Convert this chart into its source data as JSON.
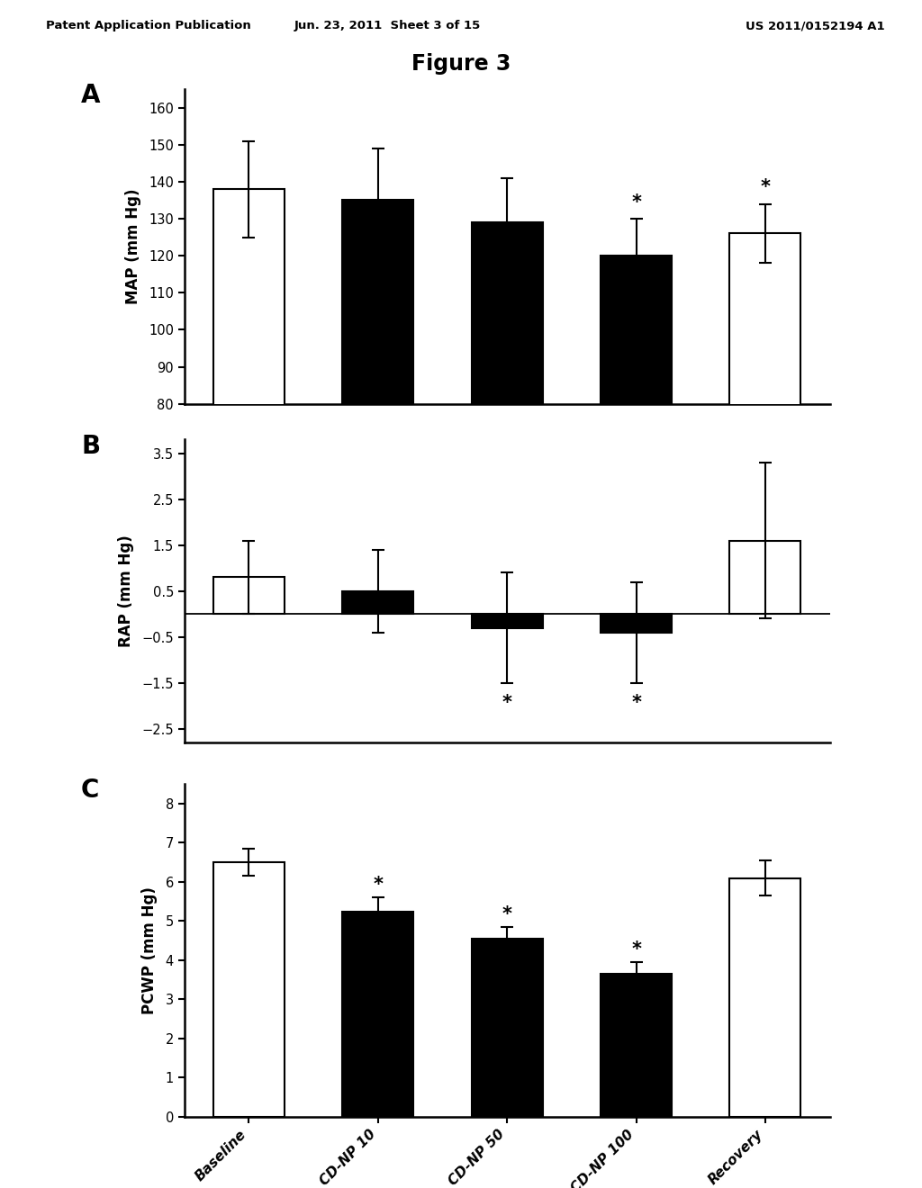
{
  "categories": [
    "Baseline",
    "CD-NP 10",
    "CD-NP 50",
    "CD-NP 100",
    "Recovery"
  ],
  "bar_colors": [
    "white",
    "black",
    "black",
    "black",
    "white"
  ],
  "bar_edgecolor": "black",
  "A": {
    "values": [
      138,
      135,
      129,
      120,
      126
    ],
    "errors": [
      13,
      14,
      12,
      10,
      8
    ],
    "ylabel": "MAP (mm Hg)",
    "ylim": [
      80,
      165
    ],
    "yticks": [
      80,
      90,
      100,
      110,
      120,
      130,
      140,
      150,
      160
    ],
    "significant": [
      false,
      false,
      false,
      true,
      true
    ]
  },
  "B": {
    "values": [
      0.8,
      0.5,
      -0.3,
      -0.4,
      1.6
    ],
    "errors": [
      0.8,
      0.9,
      1.2,
      1.1,
      1.7
    ],
    "ylabel": "RAP (mm Hg)",
    "ylim": [
      -2.8,
      3.8
    ],
    "yticks": [
      -2.5,
      -1.5,
      -0.5,
      0.5,
      1.5,
      2.5,
      3.5
    ],
    "significant": [
      false,
      false,
      true,
      true,
      false
    ]
  },
  "C": {
    "values": [
      6.5,
      5.25,
      4.55,
      3.65,
      6.1
    ],
    "errors": [
      0.35,
      0.35,
      0.3,
      0.3,
      0.45
    ],
    "ylabel": "PCWP (mm Hg)",
    "ylim": [
      0,
      8.5
    ],
    "yticks": [
      0,
      1,
      2,
      3,
      4,
      5,
      6,
      7,
      8
    ],
    "significant": [
      false,
      true,
      true,
      true,
      false
    ]
  },
  "figure_title": "Figure 3",
  "header_left": "Patent Application Publication",
  "header_mid": "Jun. 23, 2011  Sheet 3 of 15",
  "header_right": "US 2011/0152194 A1",
  "background_color": "white",
  "panel_labels": [
    "A",
    "B",
    "C"
  ],
  "bar_width": 0.55
}
